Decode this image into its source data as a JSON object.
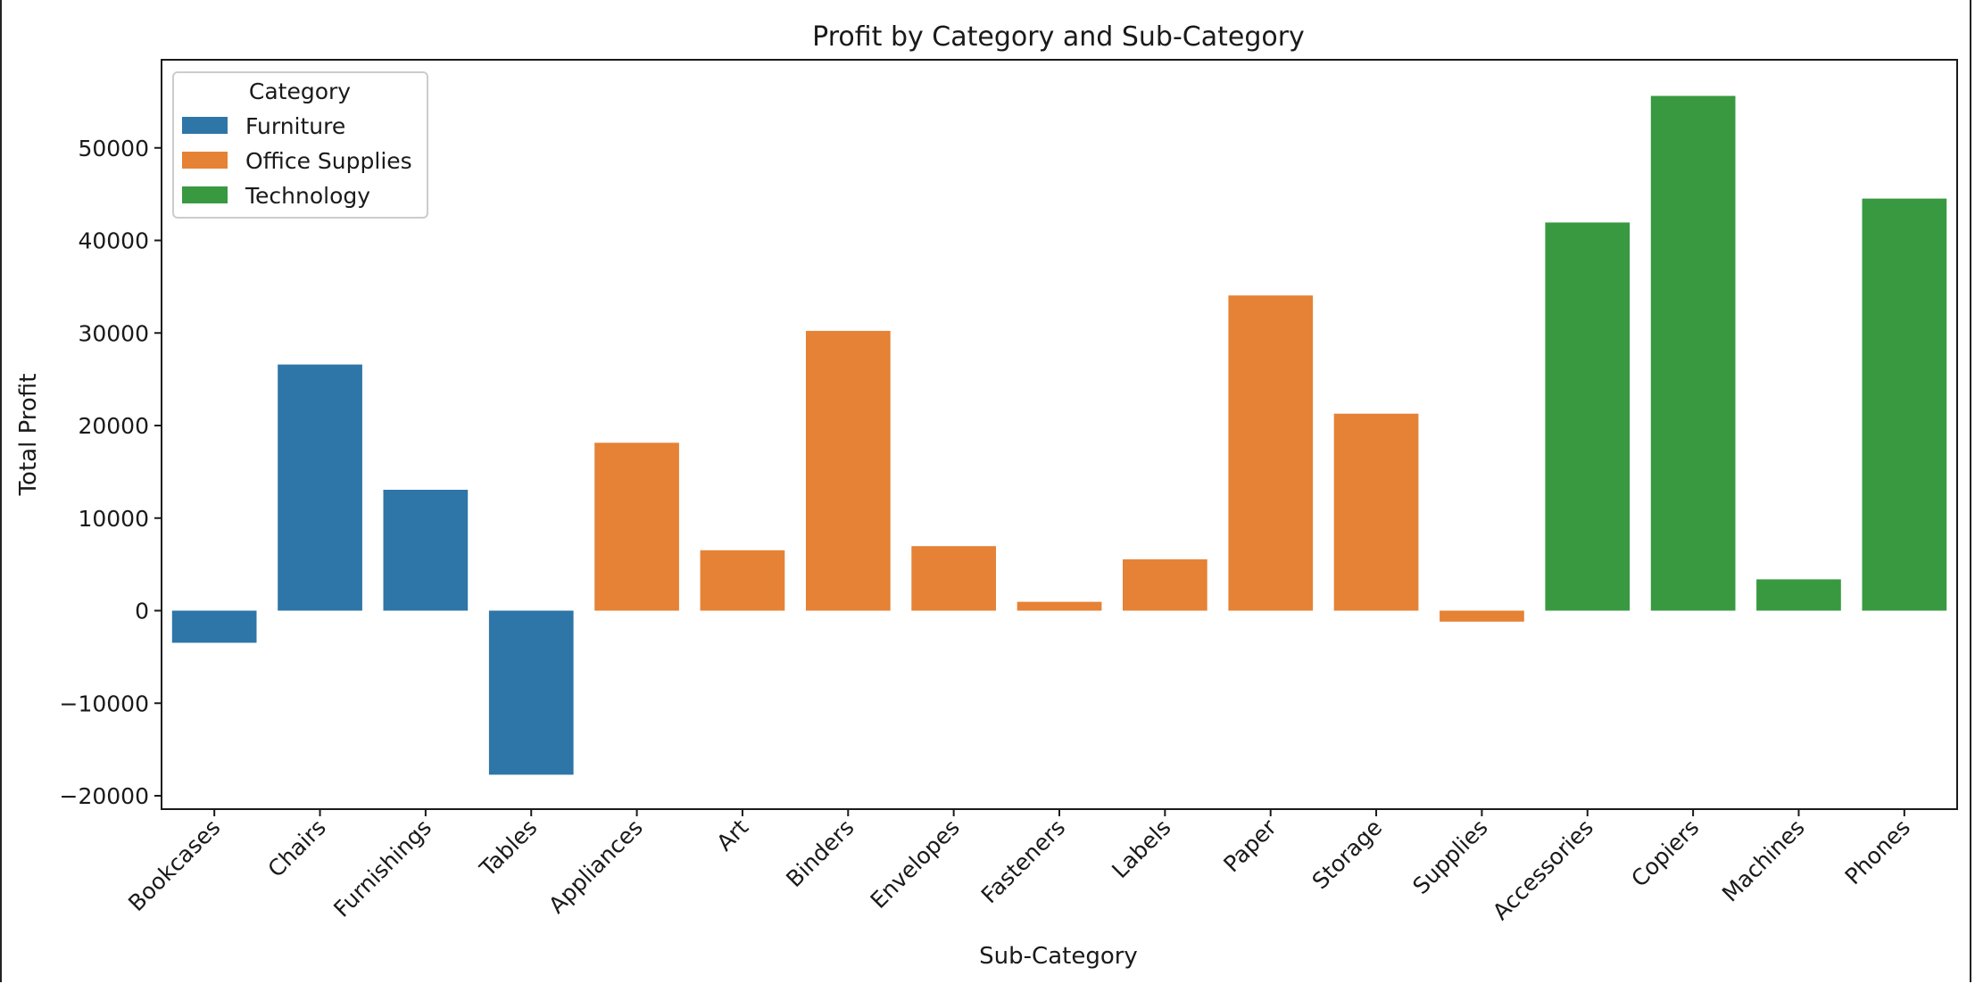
{
  "chart_data": {
    "type": "bar",
    "title": "Profit by Category and Sub-Category",
    "xlabel": "Sub-Category",
    "ylabel": "Total Profit",
    "ylim": [
      -21000,
      58500
    ],
    "yticks": [
      -20000,
      -10000,
      0,
      10000,
      20000,
      30000,
      40000,
      50000
    ],
    "ytick_labels": [
      "−20000",
      "−10000",
      "0",
      "10000",
      "20000",
      "30000",
      "40000",
      "50000"
    ],
    "grid": false,
    "legend": {
      "title": "Category",
      "position": "top-left",
      "entries": [
        {
          "name": "Furniture",
          "color": "#2e75a8"
        },
        {
          "name": "Office Supplies",
          "color": "#e58235"
        },
        {
          "name": "Technology",
          "color": "#389940"
        }
      ]
    },
    "categories": [
      "Bookcases",
      "Chairs",
      "Furnishings",
      "Tables",
      "Appliances",
      "Art",
      "Binders",
      "Envelopes",
      "Fasteners",
      "Labels",
      "Paper",
      "Storage",
      "Supplies",
      "Accessories",
      "Copiers",
      "Machines",
      "Phones"
    ],
    "values": [
      -3473,
      26590,
      13059,
      -17725,
      18138,
      6528,
      30222,
      6964,
      950,
      5546,
      34054,
      21279,
      -1189,
      41937,
      55618,
      3385,
      44516
    ],
    "category_groups": [
      "Furniture",
      "Furniture",
      "Furniture",
      "Furniture",
      "Office Supplies",
      "Office Supplies",
      "Office Supplies",
      "Office Supplies",
      "Office Supplies",
      "Office Supplies",
      "Office Supplies",
      "Office Supplies",
      "Office Supplies",
      "Technology",
      "Technology",
      "Technology",
      "Technology"
    ]
  }
}
